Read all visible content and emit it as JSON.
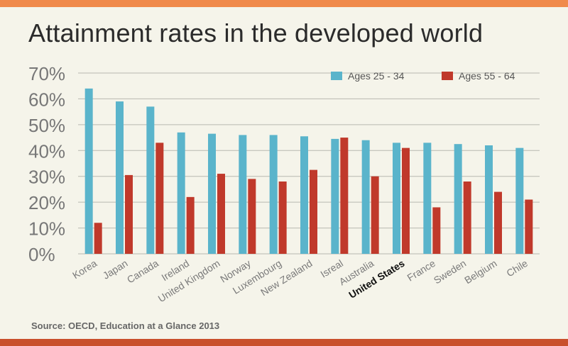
{
  "title": "Attainment rates in the developed world",
  "source": "Source: OECD, Education at a Glance 2013",
  "colors": {
    "series1": "#5ab4cb",
    "series2": "#c0392b",
    "background": "#f5f4ea",
    "accent_top": "#f08a4b",
    "accent_bottom": "#c9502c"
  },
  "chart_data": {
    "type": "bar",
    "title": "Attainment rates in the developed world",
    "xlabel": "",
    "ylabel": "",
    "ylim": [
      0,
      70
    ],
    "yticks": [
      "0%",
      "10%",
      "20%",
      "30%",
      "40%",
      "50%",
      "60%",
      "70%"
    ],
    "grid": true,
    "legend_position": "top-right",
    "highlighted_category": "United States",
    "categories": [
      "Korea",
      "Japan",
      "Canada",
      "Ireland",
      "United Kingdom",
      "Norway",
      "Luxembourg",
      "New Zealand",
      "Isreal",
      "Australia",
      "United States",
      "France",
      "Sweden",
      "Belgium",
      "Chile"
    ],
    "series": [
      {
        "name": "Ages 25 - 34",
        "color": "#5ab4cb",
        "values": [
          64,
          59,
          57,
          47,
          46.5,
          46,
          46,
          45.5,
          44.5,
          44,
          43,
          43,
          42.5,
          42,
          41
        ]
      },
      {
        "name": "Ages 55 - 64",
        "color": "#c0392b",
        "values": [
          12,
          30.5,
          43,
          22,
          31,
          29,
          28,
          32.5,
          45,
          30,
          41,
          18,
          28,
          24,
          21
        ]
      }
    ]
  }
}
